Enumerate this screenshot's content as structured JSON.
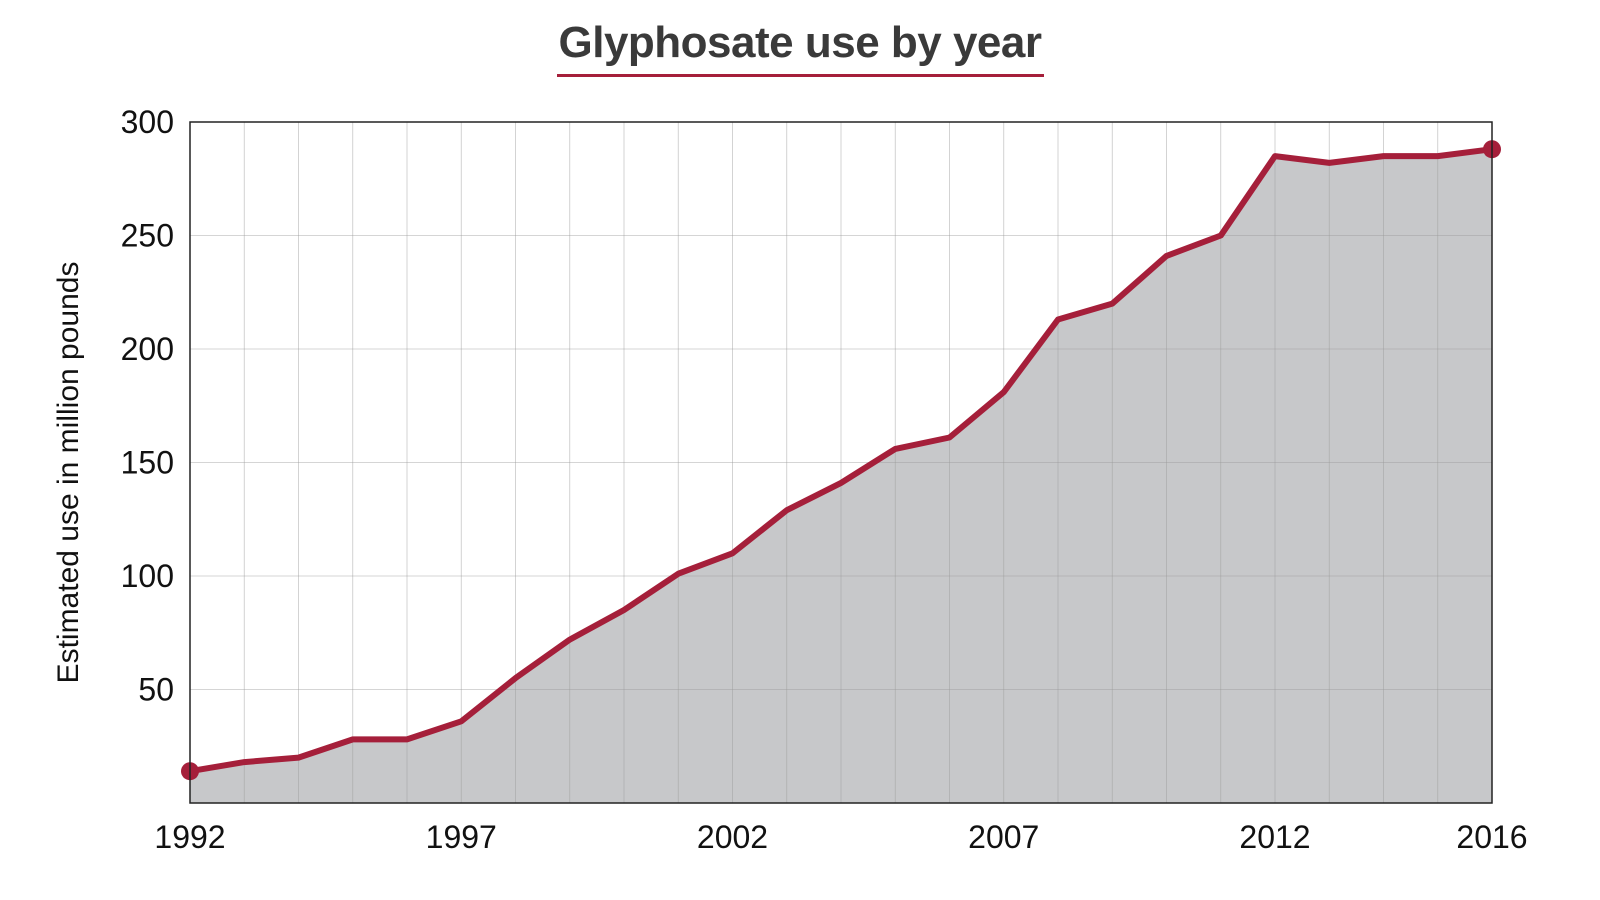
{
  "chart_data": {
    "type": "area",
    "title": "Glyphosate use by year",
    "xlabel": "",
    "ylabel": "Estimated use in million pounds",
    "x": [
      1992,
      1993,
      1994,
      1995,
      1996,
      1997,
      1998,
      1999,
      2000,
      2001,
      2002,
      2003,
      2004,
      2005,
      2006,
      2007,
      2008,
      2009,
      2010,
      2011,
      2012,
      2013,
      2014,
      2015,
      2016
    ],
    "series": [
      {
        "values": [
          14,
          18,
          20,
          28,
          28,
          36,
          55,
          72,
          85,
          101,
          110,
          129,
          141,
          156,
          161,
          181,
          213,
          220,
          241,
          250,
          285,
          282,
          285,
          285,
          288
        ]
      }
    ],
    "xlim": [
      1992,
      2016
    ],
    "ylim": [
      0,
      300
    ],
    "x_ticks": [
      1992,
      1997,
      2002,
      2007,
      2012,
      2016
    ],
    "x_tick_labels": [
      "1992",
      "1997",
      "2002",
      "2007",
      "2012",
      "2016"
    ],
    "y_ticks": [
      50,
      100,
      150,
      200,
      250,
      300
    ],
    "y_tick_labels": [
      "50",
      "100",
      "150",
      "200",
      "250",
      "300"
    ],
    "grid": true,
    "endpoint_markers": true,
    "colors": {
      "line": "#a51f3a",
      "fill": "#c7c8ca",
      "grid": "#9a9a9a",
      "title": "#3a3a3a"
    }
  }
}
